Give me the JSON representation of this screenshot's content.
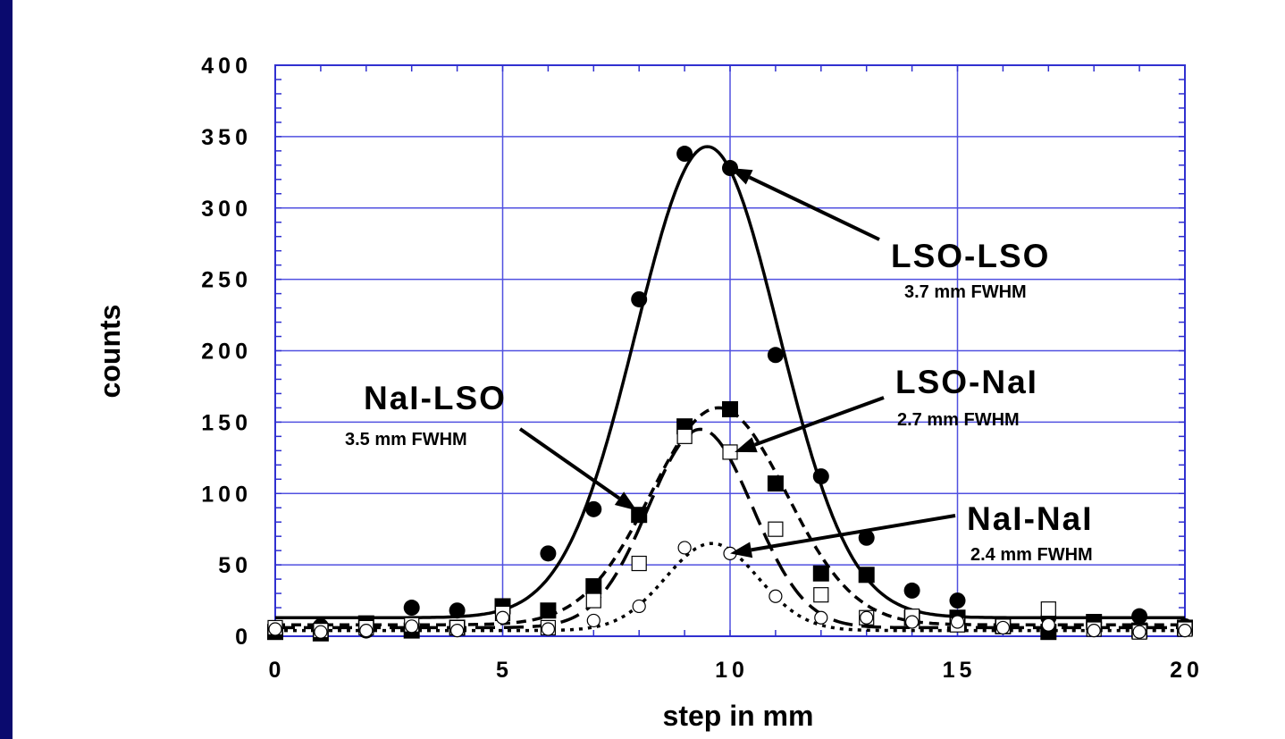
{
  "chart_data": {
    "type": "scatter",
    "xlabel": "step in mm",
    "ylabel": "counts",
    "xlim": [
      0,
      20
    ],
    "ylim": [
      0,
      400
    ],
    "xticks": [
      0,
      5,
      10,
      15,
      20
    ],
    "yticks": [
      0,
      50,
      100,
      150,
      200,
      250,
      300,
      350,
      400
    ],
    "grid": true,
    "colors": {
      "grid": "#5050e0",
      "frame": "#3030d0",
      "marks": "#000000",
      "border": "#0a0a6e"
    },
    "series": [
      {
        "name": "LSO-LSO",
        "marker": "filled-circle",
        "line": "solid",
        "x": [
          0,
          1,
          2,
          3,
          4,
          5,
          6,
          7,
          8,
          9,
          10,
          11,
          12,
          13,
          14,
          15,
          16,
          17,
          18,
          19,
          20
        ],
        "y": [
          5,
          7,
          4,
          20,
          18,
          17,
          58,
          89,
          236,
          338,
          328,
          197,
          112,
          69,
          32,
          25,
          8,
          13,
          9,
          14,
          7
        ],
        "fit": {
          "baseline": 13,
          "amplitude": 330,
          "center": 9.5,
          "fwhm": 3.7
        }
      },
      {
        "name": "NaI-LSO",
        "marker": "filled-square",
        "line": "short-dash",
        "x": [
          0,
          1,
          2,
          3,
          4,
          5,
          6,
          7,
          8,
          9,
          10,
          11,
          12,
          13,
          14,
          15,
          16,
          17,
          18,
          19,
          20
        ],
        "y": [
          3,
          2,
          9,
          4,
          6,
          21,
          18,
          35,
          85,
          147,
          159,
          107,
          44,
          43,
          13,
          13,
          7,
          3,
          10,
          4,
          6
        ],
        "fit": {
          "baseline": 8,
          "amplitude": 152,
          "center": 9.75,
          "fwhm": 3.5
        }
      },
      {
        "name": "LSO-NaI",
        "marker": "open-square",
        "line": "long-dash",
        "x": [
          0,
          1,
          2,
          3,
          4,
          5,
          6,
          7,
          8,
          9,
          10,
          11,
          12,
          13,
          14,
          15,
          16,
          17,
          18,
          19,
          20
        ],
        "y": [
          6,
          4,
          6,
          8,
          6,
          16,
          6,
          25,
          51,
          140,
          129,
          75,
          29,
          13,
          14,
          8,
          7,
          19,
          5,
          3,
          5
        ],
        "fit": {
          "baseline": 6,
          "amplitude": 139,
          "center": 9.35,
          "fwhm": 2.7
        }
      },
      {
        "name": "NaI-NaI",
        "marker": "open-circle",
        "line": "dotted",
        "x": [
          0,
          1,
          2,
          3,
          4,
          5,
          6,
          7,
          8,
          9,
          10,
          11,
          12,
          13,
          14,
          15,
          16,
          17,
          18,
          19,
          20
        ],
        "y": [
          5,
          3,
          4,
          7,
          4,
          13,
          5,
          11,
          21,
          62,
          58,
          28,
          13,
          13,
          10,
          10,
          6,
          8,
          4,
          3,
          4
        ],
        "fit": {
          "baseline": 4,
          "amplitude": 61,
          "center": 9.6,
          "fwhm": 2.4
        }
      }
    ],
    "annotations": [
      {
        "id": "lso-lso",
        "label": "LSO-LSO",
        "sub": "3.7 mm FWHM",
        "target": [
          10,
          328
        ]
      },
      {
        "id": "lso-nai",
        "label": "LSO-NaI",
        "sub": "2.7 mm FWHM",
        "target": [
          10.1,
          129
        ]
      },
      {
        "id": "nai-lso",
        "label": "NaI-LSO",
        "sub": "3.5 mm FWHM",
        "target": [
          7.95,
          88
        ]
      },
      {
        "id": "nai-nai",
        "label": "NaI-NaI",
        "sub": "2.4 mm FWHM",
        "target": [
          10,
          58
        ]
      }
    ]
  }
}
